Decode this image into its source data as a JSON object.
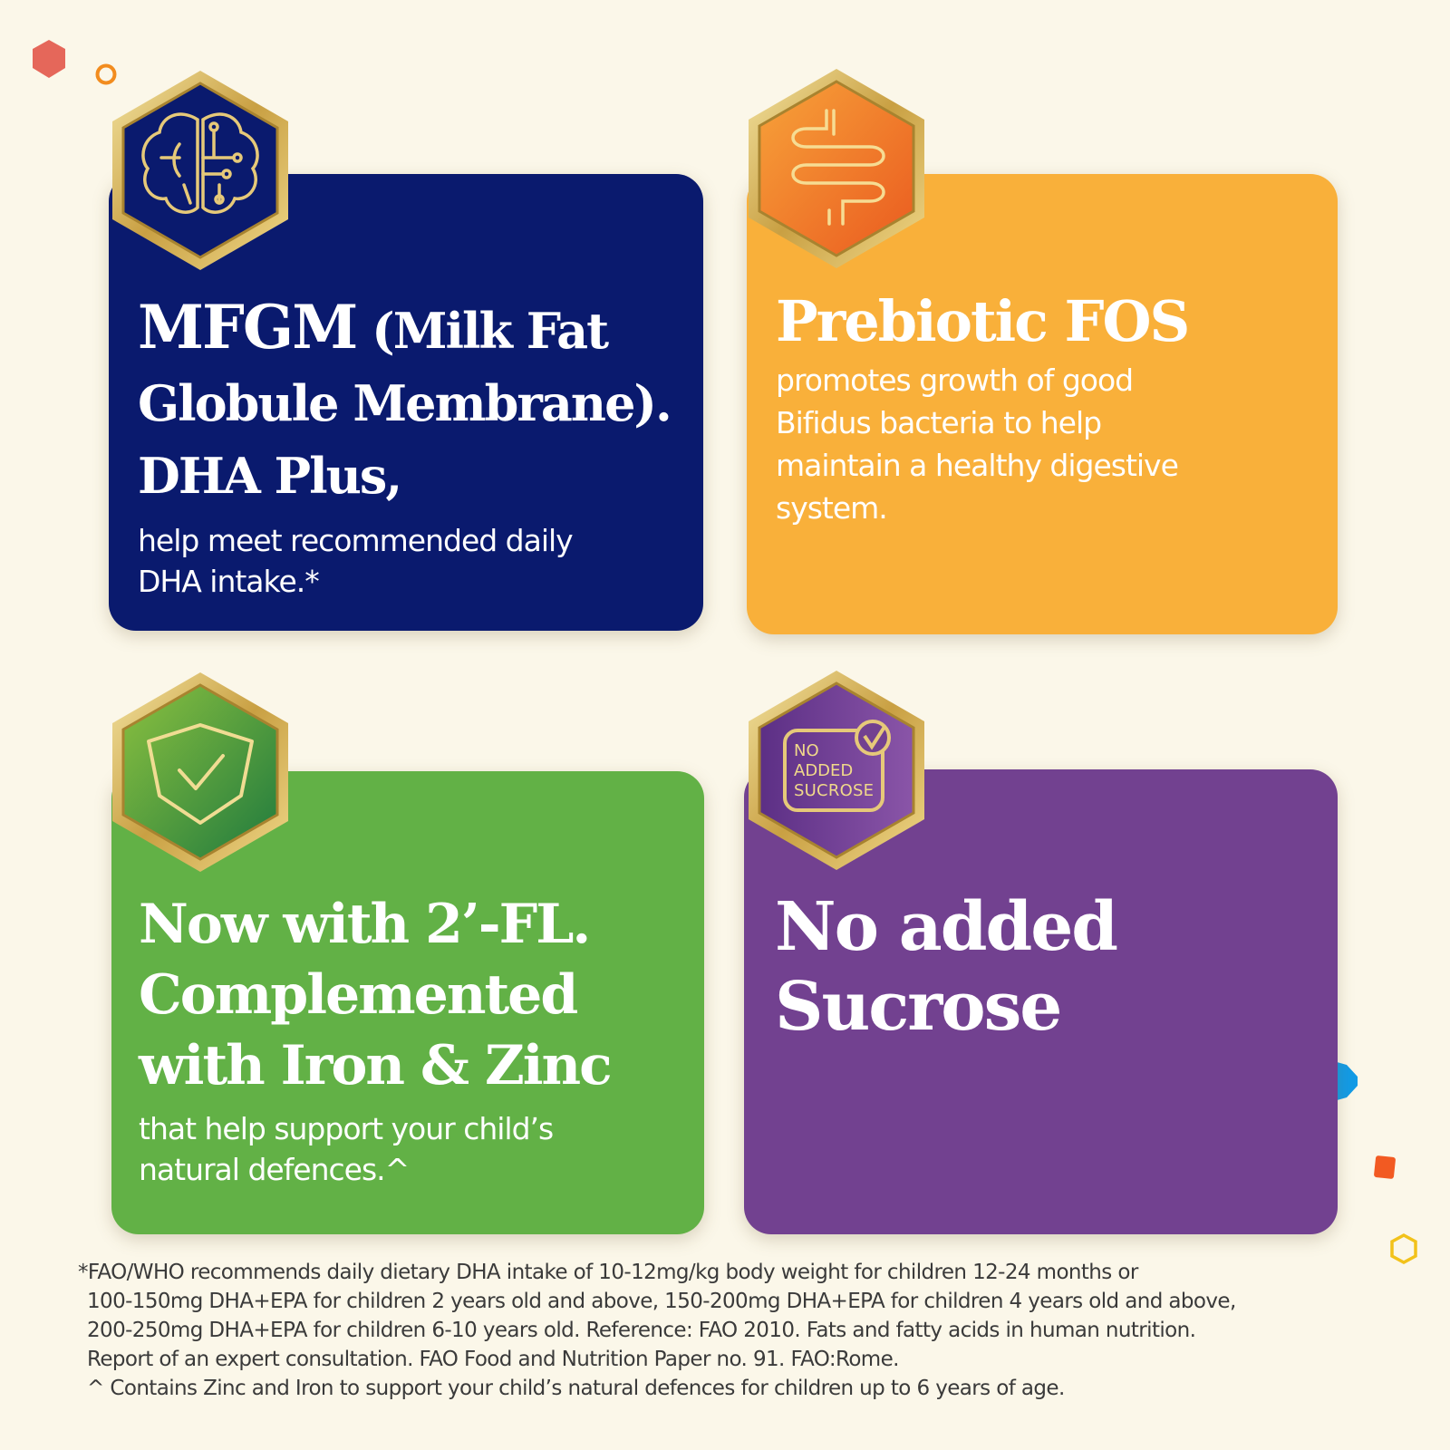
{
  "colors": {
    "background": "#fbf7e9",
    "navy": "#0a1a6e",
    "orange": "#f9b03a",
    "green": "#62b146",
    "purple": "#724190",
    "gold": "#d9b85c"
  },
  "cards": [
    {
      "title_bold": "MFGM",
      "title_rest": " (Milk Fat Globule Membrane). DHA Plus,",
      "body": "help meet recommended daily DHA intake.*",
      "icon": "brain-circuit-icon"
    },
    {
      "title": "Prebiotic FOS",
      "body": "promotes growth of good Bifidus bacteria to help maintain a healthy digestive system.",
      "icon": "intestine-icon"
    },
    {
      "title": "Now with 2’-FL. Complemented with Iron & Zinc",
      "body": "that help support your child’s natural defences.^",
      "icon": "shield-check-icon"
    },
    {
      "title": "No added Sucrose",
      "icon": "no-added-sucrose-icon",
      "badge_lines": [
        "NO",
        "ADDED",
        "SUCROSE"
      ]
    }
  ],
  "footnotes": [
    "*FAO/WHO recommends daily dietary DHA intake of 10-12mg/kg body weight for children 12-24 months or",
    "100-150mg DHA+EPA for children 2 years old and above, 150-200mg DHA+EPA for children 4 years old and above,",
    "200-250mg DHA+EPA for children 6-10 years old. Reference: FAO 2010. Fats and fatty acids in human nutrition.",
    "Report of an expert consultation. FAO Food and Nutrition Paper no. 91. FAO:Rome.",
    "^ Contains Zinc and Iron to support your child’s natural defences for children up to 6 years of age."
  ]
}
